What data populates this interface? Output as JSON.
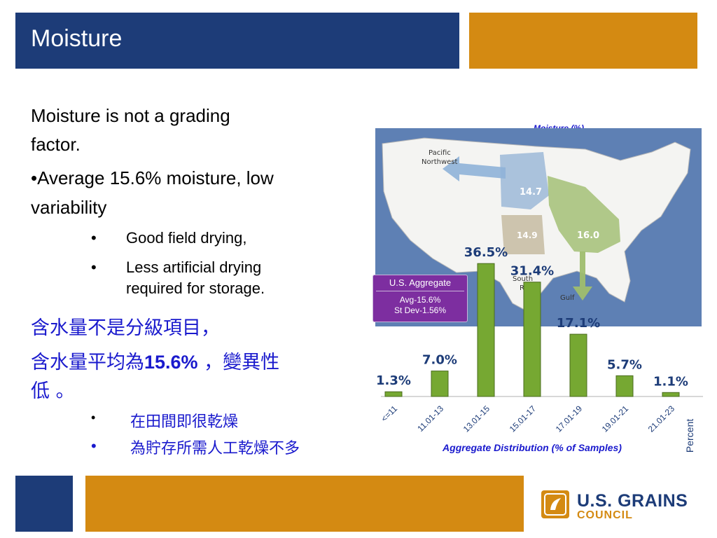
{
  "slide": {
    "title": "Moisture"
  },
  "body": {
    "line1": "Moisture is not a grading",
    "line2": "factor.",
    "bullet1_line1": "•Average 15.6% moisture, low",
    "bullet1_line2": "variability",
    "sub_bullet_mark": "•",
    "sub1": "Good field drying,",
    "sub2_line1": "Less artificial drying",
    "sub2_line2": "required for storage.",
    "cjk_line1": "含水量不是分級項目，",
    "cjk_line2_a": "含水量平均為",
    "cjk_line2_b": "15.6%",
    "cjk_line2_c": " ，變異性",
    "cjk_line3": "低 。",
    "cjk_sub1": "在田間即很乾燥",
    "cjk_sub2": "為貯存所需人工乾燥不多"
  },
  "map": {
    "title": "Moisture (%)",
    "labels": {
      "pnw": [
        "Pacific",
        "Northwest"
      ],
      "gulf": "Gulf",
      "south_rail": [
        "South",
        "Rail"
      ],
      "region_a": "14.7",
      "region_b": "14.9",
      "region_c": "16.0"
    },
    "aggregate": {
      "title": "U.S. Aggregate",
      "avg": "Avg-15.6%",
      "sd": "St Dev-1.56%"
    }
  },
  "chart_data": {
    "type": "bar",
    "categories": [
      "<=11",
      "11.01-13",
      "13.01-15",
      "15.01-17",
      "17.01-19",
      "19.01-21",
      "21.01-23"
    ],
    "values": [
      1.3,
      7.0,
      36.5,
      31.4,
      17.1,
      5.7,
      1.1
    ],
    "data_labels": [
      "1.3%",
      "7.0%",
      "36.5%",
      "31.4%",
      "17.1%",
      "5.7%",
      "1.1%"
    ],
    "xlabel": "Aggregate Distribution (% of Samples)",
    "ylabel": "Percent",
    "ylim": [
      0,
      40
    ],
    "grid": false,
    "colors": {
      "bar": "#76a832",
      "bar_edge": "#4a6b1d",
      "label": "#1d3c78",
      "title": "#1a1acd"
    }
  },
  "logo": {
    "name": "U.S. GRAINS",
    "sub": "COUNCIL"
  },
  "colors": {
    "navy": "#1d3c78",
    "gold": "#d48a12",
    "cjk_text": "#1a1acd",
    "aggregate_box": "#7d2ea0"
  }
}
